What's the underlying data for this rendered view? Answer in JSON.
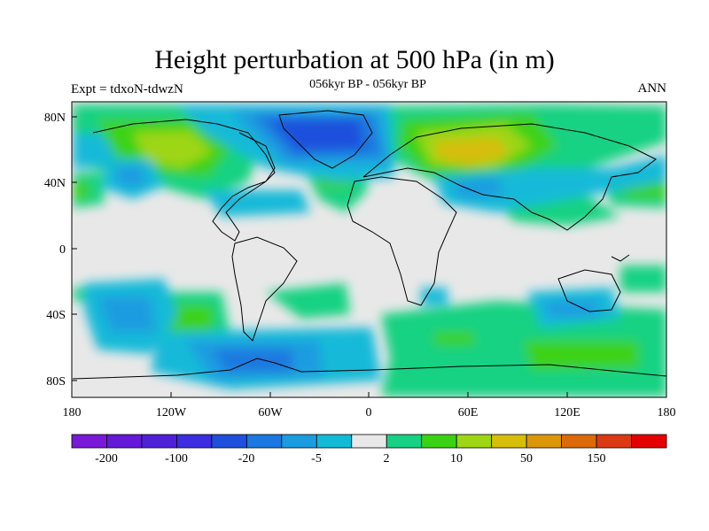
{
  "title": "Height perturbation at 500 hPa (in m)",
  "subtitle": "056kyr BP - 056kyr BP",
  "experiment": "Expt = tdxoN-tdwzN",
  "season": "ANN",
  "lat_ticks": [
    "80N",
    "40N",
    "0",
    "40S",
    "80S"
  ],
  "lon_ticks": [
    "180",
    "120W",
    "60W",
    "0",
    "60E",
    "120E",
    "180"
  ],
  "colorbar": {
    "colors": [
      "#7a18d8",
      "#6418d8",
      "#5020d8",
      "#3a2ee0",
      "#1e50dc",
      "#1a78e0",
      "#1c9ce0",
      "#12bad8",
      "#e8e8e8",
      "#16d282",
      "#3cd214",
      "#9ed614",
      "#d6be0a",
      "#dc960a",
      "#dc6a0a",
      "#dc3a14",
      "#e40000"
    ],
    "tick_labels": [
      "-200",
      "-100",
      "-20",
      "-5",
      "2",
      "10",
      "50",
      "150"
    ]
  }
}
